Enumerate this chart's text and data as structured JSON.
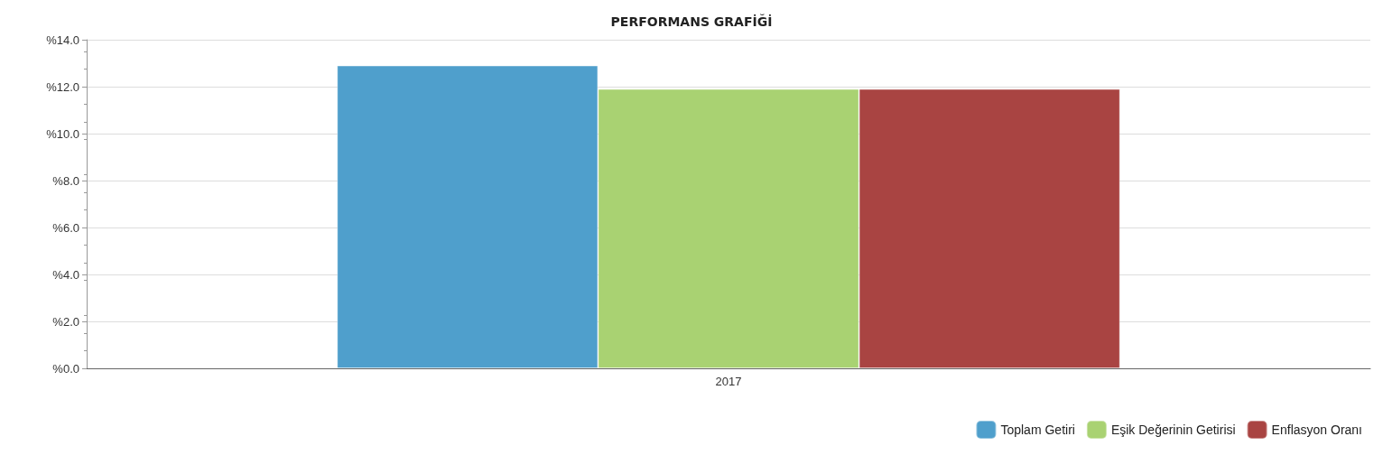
{
  "chart_data": {
    "type": "bar",
    "title": "PERFORMANS GRAFİĞİ",
    "categories": [
      "2017"
    ],
    "series": [
      {
        "name": "Toplam Getiri",
        "color": "#4f9fcc",
        "values": [
          12.9
        ]
      },
      {
        "name": "Eşik Değerinin Getirisi",
        "color": "#a9d272",
        "values": [
          11.9
        ]
      },
      {
        "name": "Enflasyon Oranı",
        "color": "#a94442",
        "values": [
          11.9
        ]
      }
    ],
    "ylim": [
      0,
      14
    ],
    "yticks": [
      {
        "value": 0,
        "label": "%0.0"
      },
      {
        "value": 2,
        "label": "%2.0"
      },
      {
        "value": 4,
        "label": "%4.0"
      },
      {
        "value": 6,
        "label": "%6.0"
      },
      {
        "value": 8,
        "label": "%8.0"
      },
      {
        "value": 10,
        "label": "%10.0"
      },
      {
        "value": 12,
        "label": "%12.0"
      },
      {
        "value": 14,
        "label": "%14.0"
      }
    ],
    "grid": "y",
    "legend": "bottom right"
  }
}
